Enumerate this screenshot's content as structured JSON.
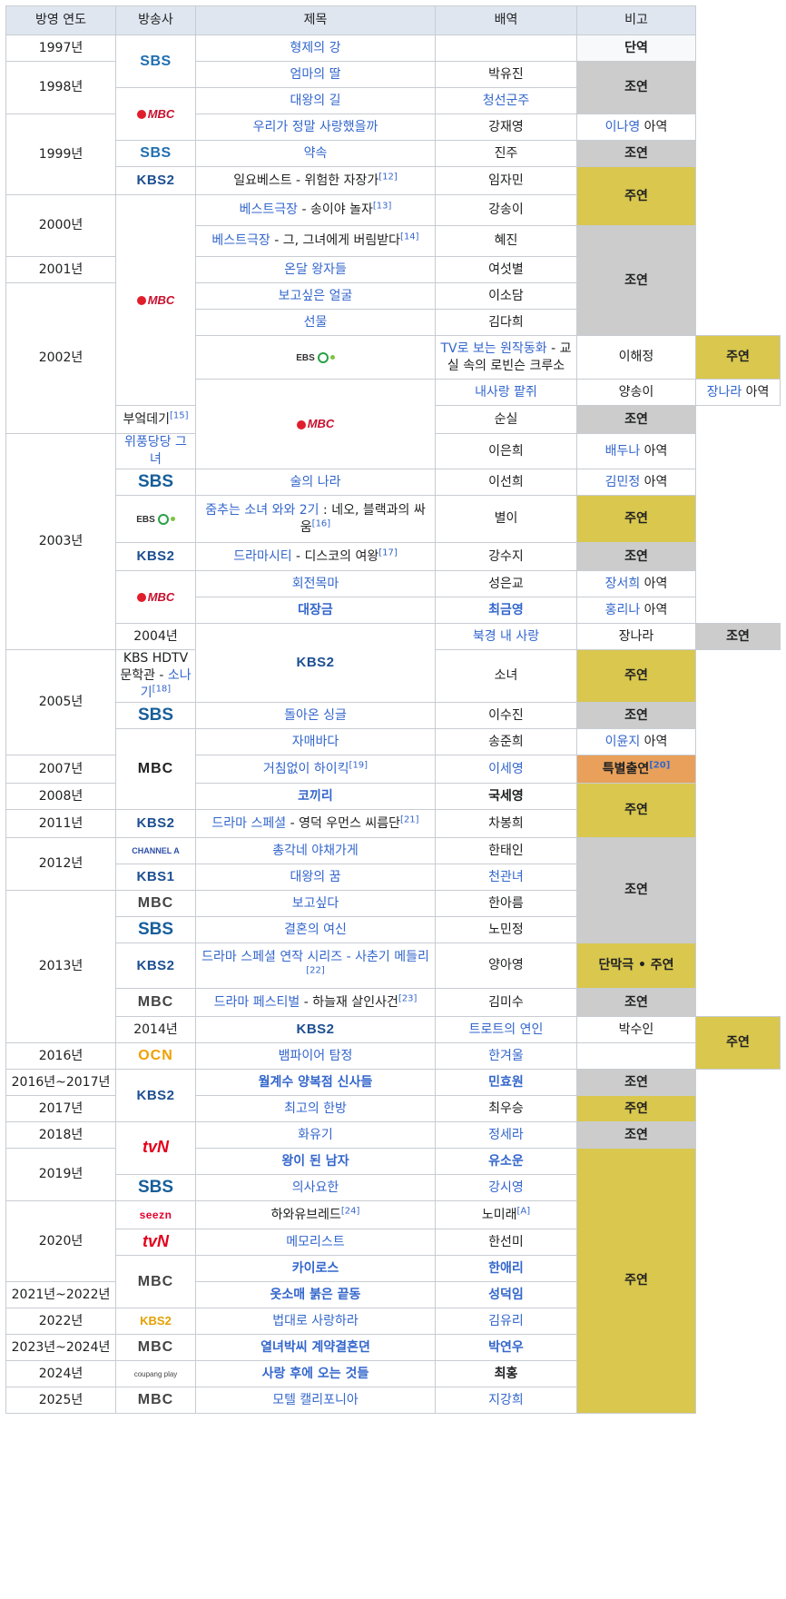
{
  "headers": {
    "year": "방영 연도",
    "broadcaster": "방송사",
    "title": "제목",
    "role": "배역",
    "note": "비고"
  },
  "colors": {
    "header_bg": "#dfe6f0",
    "link": "#3366cc",
    "support": "#cccccc",
    "lead": "#d9c74e",
    "special": "#e8a05a",
    "solo": "#f8f9fa"
  },
  "years": [
    "1997년",
    "1998년",
    "1999년",
    "2000년",
    "2001년",
    "2002년",
    "2003년",
    "2004년",
    "2005년",
    "2007년",
    "2008년",
    "2011년",
    "2012년",
    "2013년",
    "2014년",
    "2016년",
    "2016년~2017년",
    "2017년",
    "2018년",
    "2019년",
    "2020년",
    "2021년~2022년",
    "2022년",
    "2023년~2024년",
    "2024년",
    "2025년"
  ],
  "broadcasters": {
    "sbs": "SBS",
    "mbc": "MBC",
    "kbs2": "KBS2",
    "kbs1": "KBS1",
    "ebs": "EBS",
    "ocn": "OCN",
    "tvn": "tvN",
    "seezn": "seezn",
    "channela": "CHANNEL A",
    "coupang": "coupang play"
  },
  "rows": [
    {
      "title": "형제의 강",
      "role": ""
    },
    {
      "title": "엄마의 딸",
      "role": "박유진"
    },
    {
      "title": "대왕의 길",
      "role": "청선군주"
    },
    {
      "title": "우리가 정말 사랑했을까",
      "role": "강재영"
    },
    {
      "title": "약속",
      "role": "진주"
    },
    {
      "title_a": "일요베스트 - 위험한 자장가",
      "sup": "[12]",
      "role": "임자민"
    },
    {
      "title_a": "베스트극장",
      "title_b": " - 송이야 놀자",
      "sup": "[13]",
      "role": "강송이"
    },
    {
      "title_a": "베스트극장",
      "title_b": " - 그, 그녀에게 버림받다",
      "sup": "[14]",
      "role": "혜진"
    },
    {
      "title": "온달 왕자들",
      "role": "여섯별"
    },
    {
      "title": "보고싶은 얼굴",
      "role": "이소담"
    },
    {
      "title": "선물",
      "role": "김다희"
    },
    {
      "title_a": "TV로 보는 원작동화",
      "title_b": " - 교실 속의 로빈슨 크루소",
      "role": "이해정"
    },
    {
      "title": "내사랑 팥쥐",
      "role": "양송이"
    },
    {
      "title_a": "부엌데기",
      "sup": "[15]",
      "role": "순실"
    },
    {
      "title": "위풍당당 그녀",
      "role": "이은희"
    },
    {
      "title": "술의 나라",
      "role": "이선희"
    },
    {
      "title_a": "줌추는 소녀 와와 2기",
      "title_b": " : 네오, 블랙과의 싸움",
      "sup": "[16]",
      "role": "별이"
    },
    {
      "title_a": "드라마시티",
      "title_b": " - 디스코의 여왕",
      "sup": "[17]",
      "role": "강수지"
    },
    {
      "title": "회전목마",
      "role": "성은교"
    },
    {
      "title": "대장금",
      "role": "최금영"
    },
    {
      "title": "북경 내 사랑",
      "role": "장나라"
    },
    {
      "title_a": "KBS HDTV 문학관 - ",
      "title_b": "소나기",
      "sup": "[18]",
      "role": "소녀"
    },
    {
      "title": "돌아온 싱글",
      "role": "이수진"
    },
    {
      "title": "자매바다",
      "role": "송준희"
    },
    {
      "title_a": "거침없이 하이킥",
      "sup": "[19]",
      "role": "이세영"
    },
    {
      "title": "코끼리",
      "role": "국세영"
    },
    {
      "title_a": "드라마 스페셜",
      "title_b": " - 영덕 우먼스 씨름단",
      "sup": "[21]",
      "role": "차봉희"
    },
    {
      "title": "총각네 야채가게",
      "role": "한태인"
    },
    {
      "title": "대왕의 꿈",
      "role": "천관녀"
    },
    {
      "title": "보고싶다",
      "role": "한아름"
    },
    {
      "title": "결혼의 여신",
      "role": "노민정"
    },
    {
      "title_a": "드라마 스페셜 연작 시리즈 - 사춘기 메들리",
      "sup": "[22]",
      "role": "양아영"
    },
    {
      "title_a": "드라마 페스티벌",
      "title_b": " - 하늘재 살인사건",
      "sup": "[23]",
      "role": "김미수"
    },
    {
      "title": "트로트의 연인",
      "role": "박수인"
    },
    {
      "title": "뱀파이어 탐정",
      "role": "한겨울"
    },
    {
      "title": "월계수 양복점 신사들",
      "role": "민효원"
    },
    {
      "title": "최고의 한방",
      "role": "최우승"
    },
    {
      "title": "화유기",
      "role": "정세라"
    },
    {
      "title": "왕이 된 남자",
      "role": "유소운"
    },
    {
      "title": "의사요한",
      "role": "강시영"
    },
    {
      "title_a": "하와유브레드",
      "sup": "[24]",
      "role_a": "노미래",
      "role_sup": "[A]"
    },
    {
      "title": "메모리스트",
      "role": "한선미"
    },
    {
      "title": "카이로스",
      "role": "한애리"
    },
    {
      "title": "옷소매 붉은 끝동",
      "role": "성덕임"
    },
    {
      "title": "법대로 사랑하라",
      "role": "김유리"
    },
    {
      "title": "열녀박씨 계약결혼뎐",
      "role": "박연우"
    },
    {
      "title": "사랑 후에 오는 것들",
      "role": "최홍"
    },
    {
      "title": "모텔 캘리포니아",
      "role": "지강희"
    }
  ],
  "notes": {
    "solo": "단역",
    "support": "조연",
    "lead": "주연",
    "single_lead": "단막극 • 주연",
    "special": "특별출연",
    "special_sup": "[20]",
    "child1_name": "이나영",
    "child2_name": "장나라",
    "child3_name": "배두나",
    "child4_name": "김민정",
    "child5_name": "장서희",
    "child6_name": "홍리나",
    "child7_name": "이윤지",
    "child_suffix": " 아역"
  }
}
